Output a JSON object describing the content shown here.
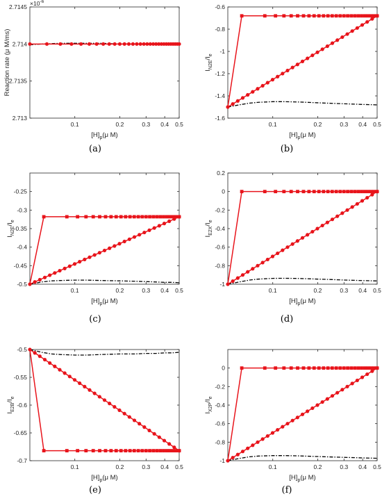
{
  "chart_data": [
    {
      "id": "a",
      "caption": "(a)",
      "type": "line",
      "xlabel": "[H]",
      "xlabel_sub": "p",
      "xlabel_unit": "(μ M)",
      "ylabel": "Reaction rate (μ M/ms)",
      "ylabel_sub": "",
      "ylabel_after": "",
      "exponent_label": "×10",
      "exponent_power": "-6",
      "xlim": [
        0.05,
        0.5
      ],
      "x_scale": "log",
      "ylim": [
        2.713,
        2.7145
      ],
      "xticks": [
        0.1,
        0.2,
        0.3,
        0.4,
        0.5
      ],
      "xtick_labels": [
        "0.1",
        "0.2",
        "0.3",
        "0.4",
        "0.5"
      ],
      "yticks": [
        2.713,
        2.7135,
        2.714,
        2.7145
      ],
      "ytick_labels": [
        "2.713",
        "2.7135",
        "2.714",
        "2.7145"
      ],
      "series": [
        {
          "style": "dashdot-black",
          "x": [
            0.05,
            0.06,
            0.08,
            0.1,
            0.15,
            0.2,
            0.3,
            0.4,
            0.5
          ],
          "y": [
            2.71399,
            2.714,
            2.71401,
            2.71401,
            2.71401,
            2.714,
            2.714,
            2.714,
            2.714
          ]
        },
        {
          "style": "red-circles",
          "x": [
            0.05,
            0.065,
            0.08,
            0.095,
            0.11,
            0.125,
            0.14,
            0.155,
            0.17,
            0.185,
            0.2,
            0.215,
            0.23,
            0.245,
            0.26,
            0.275,
            0.29,
            0.305,
            0.32,
            0.335,
            0.35,
            0.365,
            0.38,
            0.395,
            0.41,
            0.425,
            0.44,
            0.455,
            0.47,
            0.485,
            0.5
          ],
          "y": [
            2.714,
            2.714,
            2.714,
            2.714,
            2.714,
            2.714,
            2.714,
            2.714,
            2.714,
            2.714,
            2.714,
            2.714,
            2.714,
            2.714,
            2.714,
            2.714,
            2.714,
            2.714,
            2.714,
            2.714,
            2.714,
            2.714,
            2.714,
            2.714,
            2.714,
            2.714,
            2.714,
            2.714,
            2.714,
            2.714,
            2.714
          ]
        }
      ]
    },
    {
      "id": "b",
      "caption": "(b)",
      "type": "line",
      "xlabel": "[H]",
      "xlabel_sub": "p",
      "xlabel_unit": "(μ M)",
      "ylabel": "I",
      "ylabel_sub": "N2E",
      "ylabel_after": "/I",
      "ylabel_sub2": "e",
      "xlim": [
        0.05,
        0.5
      ],
      "x_scale": "log",
      "ylim": [
        -1.6,
        -0.6
      ],
      "xticks": [
        0.1,
        0.2,
        0.3,
        0.4,
        0.5
      ],
      "xtick_labels": [
        "0.1",
        "0.2",
        "0.3",
        "0.4",
        "0.5"
      ],
      "yticks": [
        -1.6,
        -1.4,
        -1.2,
        -1,
        -0.8,
        -0.6
      ],
      "ytick_labels": [
        "-1.6",
        "-1.4",
        "-1.2",
        "-1",
        "-0.8",
        "-0.6"
      ],
      "series": [
        {
          "style": "dashdot-black",
          "x": [
            0.05,
            0.06,
            0.07,
            0.08,
            0.1,
            0.12,
            0.15,
            0.2,
            0.25,
            0.3,
            0.35,
            0.4,
            0.45,
            0.5
          ],
          "y": [
            -1.5,
            -1.48,
            -1.465,
            -1.458,
            -1.452,
            -1.452,
            -1.455,
            -1.462,
            -1.467,
            -1.471,
            -1.474,
            -1.477,
            -1.479,
            -1.481
          ]
        },
        {
          "style": "red-circles-line",
          "from": [
            0.05,
            -1.5
          ],
          "to": [
            0.5,
            -0.68
          ],
          "n": 31
        },
        {
          "style": "red-squares",
          "x": [
            0.05,
            0.062
          ],
          "y": [
            -1.5,
            -0.68
          ],
          "ramp_n": 26,
          "ramp_to": [
            0.5,
            -0.68
          ]
        }
      ]
    },
    {
      "id": "c",
      "caption": "(c)",
      "type": "line",
      "xlabel": "[H]",
      "xlabel_sub": "p",
      "xlabel_unit": "(μ M)",
      "ylabel": "I",
      "ylabel_sub": "N2E",
      "ylabel_after": "/I",
      "ylabel_sub2": "e",
      "xlim": [
        0.05,
        0.5
      ],
      "x_scale": "log",
      "ylim": [
        -0.5,
        -0.2
      ],
      "xticks": [
        0.1,
        0.2,
        0.3,
        0.4,
        0.5
      ],
      "xtick_labels": [
        "0.1",
        "0.2",
        "0.3",
        "0.4",
        "0.5"
      ],
      "yticks": [
        -0.5,
        -0.45,
        -0.4,
        -0.35,
        -0.3,
        -0.25
      ],
      "ytick_labels": [
        "-0.5",
        "-0.45",
        "-0.4",
        "-0.35",
        "-0.3",
        "-0.25"
      ],
      "series": [
        {
          "style": "dashdot-black",
          "x": [
            0.05,
            0.06,
            0.07,
            0.08,
            0.1,
            0.12,
            0.15,
            0.2,
            0.25,
            0.3,
            0.35,
            0.4,
            0.45,
            0.5
          ],
          "y": [
            -0.5,
            -0.494,
            -0.491,
            -0.49,
            -0.489,
            -0.489,
            -0.49,
            -0.491,
            -0.492,
            -0.493,
            -0.494,
            -0.495,
            -0.495,
            -0.496
          ]
        },
        {
          "style": "red-circles-line",
          "from": [
            0.05,
            -0.5
          ],
          "to": [
            0.5,
            -0.318
          ],
          "n": 31
        },
        {
          "style": "red-squares",
          "x": [
            0.05,
            0.062
          ],
          "y": [
            -0.5,
            -0.318
          ],
          "ramp_n": 26,
          "ramp_to": [
            0.5,
            -0.318
          ]
        }
      ]
    },
    {
      "id": "d",
      "caption": "(d)",
      "type": "line",
      "xlabel": "[H]",
      "xlabel_sub": "p",
      "xlabel_unit": "(μ M)",
      "ylabel": "I",
      "ylabel_sub": "E2X",
      "ylabel_after": "/I",
      "ylabel_sub2": "e",
      "xlim": [
        0.05,
        0.5
      ],
      "x_scale": "log",
      "ylim": [
        -1,
        0.2
      ],
      "xticks": [
        0.1,
        0.2,
        0.3,
        0.4,
        0.5
      ],
      "xtick_labels": [
        "0.1",
        "0.2",
        "0.3",
        "0.4",
        "0.5"
      ],
      "yticks": [
        -1,
        -0.8,
        -0.6,
        -0.4,
        -0.2,
        0,
        0.2
      ],
      "ytick_labels": [
        "-1",
        "-0.8",
        "-0.6",
        "-0.4",
        "-0.2",
        "0",
        "0.2"
      ],
      "series": [
        {
          "style": "dashdot-black",
          "x": [
            0.05,
            0.06,
            0.07,
            0.08,
            0.1,
            0.12,
            0.15,
            0.2,
            0.25,
            0.3,
            0.35,
            0.4,
            0.45,
            0.5
          ],
          "y": [
            -1,
            -0.975,
            -0.955,
            -0.945,
            -0.937,
            -0.936,
            -0.938,
            -0.945,
            -0.95,
            -0.955,
            -0.958,
            -0.961,
            -0.963,
            -0.965
          ]
        },
        {
          "style": "red-circles-line",
          "from": [
            0.05,
            -1
          ],
          "to": [
            0.5,
            0
          ],
          "n": 31
        },
        {
          "style": "red-squares",
          "x": [
            0.05,
            0.062
          ],
          "y": [
            -1,
            0
          ],
          "ramp_n": 26,
          "ramp_to": [
            0.5,
            0
          ]
        }
      ]
    },
    {
      "id": "e",
      "caption": "(e)",
      "type": "line",
      "xlabel": "[H]",
      "xlabel_sub": "p",
      "xlabel_unit": "(μ M)",
      "ylabel": "I",
      "ylabel_sub": "E2B",
      "ylabel_after": "/I",
      "ylabel_sub2": "e",
      "xlim": [
        0.05,
        0.5
      ],
      "x_scale": "log",
      "ylim": [
        -0.7,
        -0.5
      ],
      "xticks": [
        0.1,
        0.2,
        0.3,
        0.4,
        0.5
      ],
      "xtick_labels": [
        "0.1",
        "0.2",
        "0.3",
        "0.4",
        "0.5"
      ],
      "yticks": [
        -0.7,
        -0.65,
        -0.6,
        -0.55,
        -0.5
      ],
      "ytick_labels": [
        "-0.7",
        "-0.65",
        "-0.6",
        "-0.55",
        "-0.5"
      ],
      "series": [
        {
          "style": "dashdot-black",
          "x": [
            0.05,
            0.06,
            0.07,
            0.08,
            0.1,
            0.12,
            0.15,
            0.2,
            0.25,
            0.3,
            0.35,
            0.4,
            0.45,
            0.5
          ],
          "y": [
            -0.5,
            -0.505,
            -0.508,
            -0.509,
            -0.51,
            -0.51,
            -0.509,
            -0.508,
            -0.508,
            -0.507,
            -0.507,
            -0.506,
            -0.506,
            -0.505
          ]
        },
        {
          "style": "red-circles-line",
          "from": [
            0.05,
            -0.5
          ],
          "to": [
            0.5,
            -0.682
          ],
          "n": 31
        },
        {
          "style": "red-squares",
          "x": [
            0.05,
            0.062
          ],
          "y": [
            -0.5,
            -0.682
          ],
          "ramp_n": 26,
          "ramp_to": [
            0.5,
            -0.682
          ]
        }
      ]
    },
    {
      "id": "f",
      "caption": "(f)",
      "type": "line",
      "xlabel": "[H]",
      "xlabel_sub": "p",
      "xlabel_unit": "(μ M)",
      "ylabel": "I",
      "ylabel_sub": "X2P",
      "ylabel_after": "/I",
      "ylabel_sub2": "e",
      "xlim": [
        0.05,
        0.5
      ],
      "x_scale": "log",
      "ylim": [
        -1,
        0.2
      ],
      "xticks": [
        0.1,
        0.2,
        0.3,
        0.4,
        0.5
      ],
      "xtick_labels": [
        "0.1",
        "0.2",
        "0.3",
        "0.4",
        "0.5"
      ],
      "yticks": [
        -1,
        -0.8,
        -0.6,
        -0.4,
        -0.2,
        0
      ],
      "ytick_labels": [
        "-1",
        "-0.8",
        "-0.6",
        "-0.4",
        "-0.2",
        "0"
      ],
      "series": [
        {
          "style": "dashdot-black",
          "x": [
            0.05,
            0.06,
            0.07,
            0.08,
            0.1,
            0.12,
            0.15,
            0.2,
            0.25,
            0.3,
            0.35,
            0.4,
            0.45,
            0.5
          ],
          "y": [
            -1,
            -0.975,
            -0.958,
            -0.95,
            -0.945,
            -0.945,
            -0.948,
            -0.955,
            -0.96,
            -0.964,
            -0.967,
            -0.97,
            -0.972,
            -0.974
          ]
        },
        {
          "style": "red-circles-line",
          "from": [
            0.05,
            -1
          ],
          "to": [
            0.5,
            0
          ],
          "n": 31
        },
        {
          "style": "red-squares",
          "x": [
            0.05,
            0.062
          ],
          "y": [
            -1,
            0
          ],
          "ramp_n": 26,
          "ramp_to": [
            0.5,
            0
          ]
        }
      ]
    }
  ],
  "colors": {
    "red": "#e8141b",
    "black": "#000000",
    "axis": "#262626"
  }
}
